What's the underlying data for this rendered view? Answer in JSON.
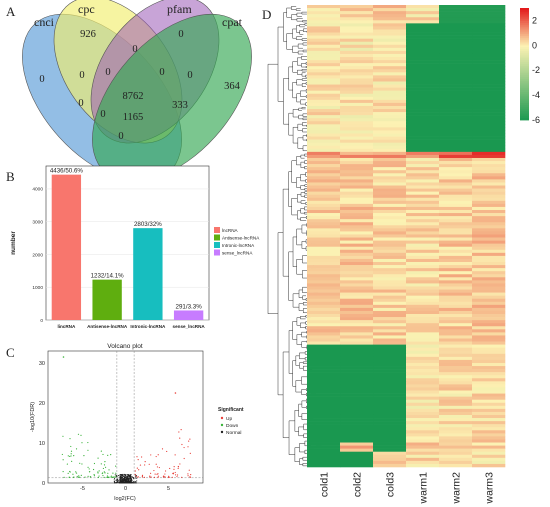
{
  "panel_labels": {
    "a": "A",
    "b": "B",
    "c": "C",
    "d": "D"
  },
  "chart_data": [
    {
      "type": "venn",
      "sets": [
        "cnci",
        "cpc",
        "pfam",
        "cpat"
      ],
      "set_colors": [
        "#6fa8dc",
        "#f1ee6e",
        "#9b59b6",
        "#34a853"
      ],
      "regions": {
        "cnci_only": 0,
        "cpc_only": 926,
        "pfam_only": 0,
        "cpat_only": 364,
        "cpc_pfam": 0,
        "cnci_cpc": 0,
        "pfam_cpat": 0,
        "cnci_cpc_pfam": 0,
        "cpc_pfam_cpat": 0,
        "cnci_cpc_pfam_cpat": 8762,
        "cnci_pfam_cpat": 333,
        "cnci_cpc_cpat": 0,
        "cnci_pfam": 0,
        "cnci_cpat": 1165,
        "cpc_cpat": 0
      }
    },
    {
      "type": "bar",
      "categories": [
        "lincRNA",
        "Antisense-lncRNA",
        "Intronic-lncRNA",
        "sense_lncRNA"
      ],
      "values": [
        4436,
        1232,
        2803,
        291
      ],
      "bar_labels": [
        "4436/50.6%",
        "1232/14.1%",
        "2803/32%",
        "291/3.3%"
      ],
      "colors": [
        "#f8766d",
        "#5fae0f",
        "#17bebf",
        "#c77cff"
      ],
      "ylabel": "number",
      "ylim": [
        0,
        4700
      ],
      "yticks": [
        0,
        1000,
        2000,
        3000,
        4000
      ],
      "legend": [
        "lncRNA",
        "Antisense-lncRNA",
        "Intronic-lncRNA",
        "sense_lncRNA"
      ],
      "legend_placement": "right"
    },
    {
      "type": "scatter",
      "title": "Volcano plot",
      "xlabel": "log2(FC)",
      "ylabel": "-log10(FDR)",
      "xlim": [
        -9,
        9
      ],
      "ylim": [
        0,
        33
      ],
      "xticks": [
        -5,
        0,
        5
      ],
      "yticks": [
        0,
        10,
        20,
        30
      ],
      "legend_title": "Significant",
      "legend": [
        "Up",
        "Down",
        "Normal"
      ],
      "legend_colors": [
        "#e8413b",
        "#3bb33b",
        "#222222"
      ],
      "legend_placement": "right",
      "thresholds": {
        "fc": [
          -1,
          1
        ],
        "fdr": 1.3
      },
      "notable_points": [
        {
          "x": -7.2,
          "y": 31.5
        },
        {
          "x": 5.8,
          "y": 22.5
        }
      ]
    },
    {
      "type": "heatmap",
      "columns": [
        "cold1",
        "cold2",
        "cold3",
        "warm1",
        "warm2",
        "warm3"
      ],
      "scale_ticks": [
        2,
        0,
        -2,
        -4,
        -6
      ],
      "scale_range": [
        -6,
        3
      ],
      "colors": {
        "high": "#e31a1c",
        "mid": "#fcf2b3",
        "low": "#1a9850"
      },
      "row_blocks": [
        {
          "name": "top-cream",
          "fraction": 0.04,
          "values": [
            0.3,
            0.4,
            0.6,
            0.2,
            -5.8,
            -5.8
          ]
        },
        {
          "name": "warm-low",
          "fraction": 0.28,
          "values": [
            0.2,
            0.1,
            0.2,
            -6,
            -6,
            -6
          ]
        },
        {
          "name": "band",
          "fraction": 0.01,
          "values": [
            1.4,
            1.3,
            1.3,
            1.5,
            2.0,
            2.4
          ]
        },
        {
          "name": "middle",
          "fraction": 0.41,
          "values": [
            0.4,
            0.5,
            0.4,
            0.3,
            0.5,
            0.6
          ]
        },
        {
          "name": "cold-low",
          "fraction": 0.21,
          "values": [
            -6,
            -6,
            -6,
            0.2,
            0.3,
            0.3
          ]
        },
        {
          "name": "mixed",
          "fraction": 0.02,
          "values": [
            -6,
            0.8,
            -6,
            0.4,
            0.4,
            0.3
          ]
        },
        {
          "name": "bottom",
          "fraction": 0.03,
          "values": [
            -6,
            -6,
            0.5,
            0.3,
            0.4,
            0.2
          ]
        }
      ]
    }
  ]
}
